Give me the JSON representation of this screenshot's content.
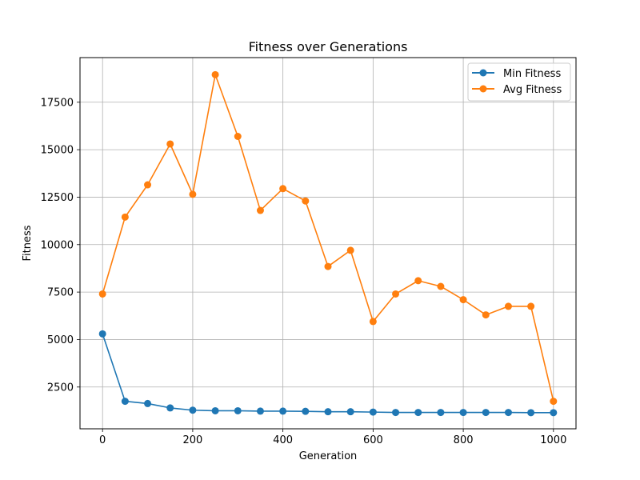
{
  "chart_data": {
    "type": "line",
    "title": "Fitness over Generations",
    "xlabel": "Generation",
    "ylabel": "Fitness",
    "xlim": [
      -50,
      1050
    ],
    "ylim": [
      300,
      19850
    ],
    "xticks": [
      0,
      200,
      400,
      600,
      800,
      1000
    ],
    "yticks": [
      2500,
      5000,
      7500,
      10000,
      12500,
      15000,
      17500
    ],
    "grid": true,
    "legend_position": "top-right",
    "x": [
      0,
      50,
      100,
      150,
      200,
      250,
      300,
      350,
      400,
      450,
      500,
      550,
      600,
      650,
      700,
      750,
      800,
      850,
      900,
      950,
      1000
    ],
    "series": [
      {
        "name": "Min Fitness",
        "color": "#1f77b4",
        "marker": "circle",
        "values": [
          5300,
          1750,
          1630,
          1400,
          1280,
          1250,
          1250,
          1230,
          1230,
          1220,
          1200,
          1200,
          1180,
          1160,
          1160,
          1160,
          1160,
          1160,
          1160,
          1150,
          1150
        ]
      },
      {
        "name": "Avg Fitness",
        "color": "#ff7f0e",
        "marker": "circle",
        "values": [
          7400,
          11450,
          13150,
          15300,
          12650,
          18950,
          15700,
          11800,
          12950,
          12300,
          8850,
          9700,
          5950,
          7400,
          8100,
          7800,
          7100,
          6300,
          6750,
          6750,
          1750
        ]
      }
    ]
  }
}
